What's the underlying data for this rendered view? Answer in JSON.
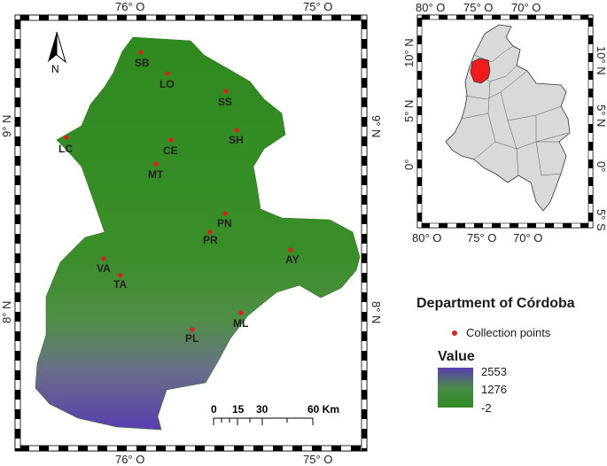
{
  "main_map": {
    "frame": {
      "top_lon": [
        "76° O",
        "75° O"
      ],
      "bottom_lon": [
        "76° O",
        "75° O"
      ],
      "left_lat": [
        "9° N",
        "8° N"
      ],
      "right_lat": [
        "9° N",
        "8° N"
      ]
    },
    "north_label": "N",
    "points": [
      {
        "code": "SB"
      },
      {
        "code": "LO"
      },
      {
        "code": "SS"
      },
      {
        "code": "SH"
      },
      {
        "code": "LC"
      },
      {
        "code": "CE"
      },
      {
        "code": "MT"
      },
      {
        "code": "PN"
      },
      {
        "code": "PR"
      },
      {
        "code": "AY"
      },
      {
        "code": "VA"
      },
      {
        "code": "TA"
      },
      {
        "code": "ML"
      },
      {
        "code": "PL"
      }
    ],
    "scale_bar": {
      "labels": [
        "0",
        "15",
        "30",
        "60 Km"
      ]
    }
  },
  "inset_map": {
    "top_lon": [
      "80° O",
      "75° O",
      "70° O"
    ],
    "bottom_lon": [
      "80° O",
      "75° O",
      "70° O"
    ],
    "left_lat": [
      "10° N",
      "5° N",
      "0°"
    ],
    "right_lat": [
      "10° N",
      "5° N",
      "0°",
      "5° S"
    ]
  },
  "legend": {
    "title": "Department of Córdoba",
    "point_label": "Collection points",
    "point_color": "#e01f1f",
    "value_title": "Value",
    "value_max": "2553",
    "value_mid": "1276",
    "value_min": "-2",
    "ramp_colors": [
      "#5b3fb0",
      "#4a8a4a",
      "#2e8b1e"
    ]
  }
}
